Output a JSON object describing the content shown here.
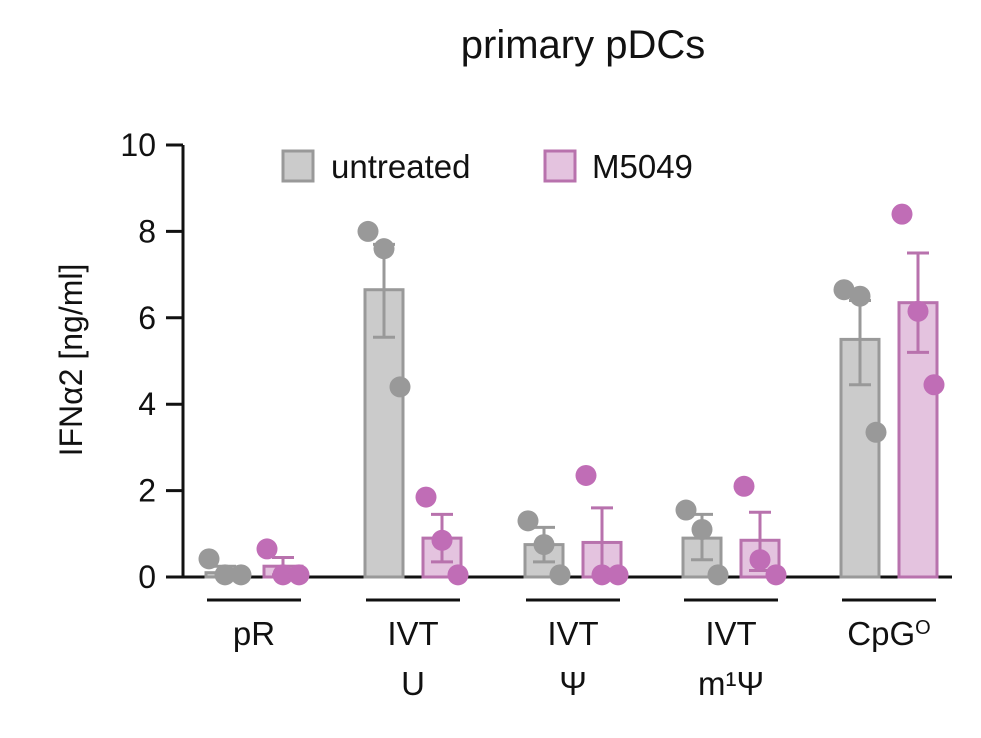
{
  "title": "primary pDCs",
  "colors": {
    "untreated_fill": "#cbcbcb",
    "untreated_edge": "#999999",
    "untreated_dot": "#999999",
    "m5049_fill": "#e4c3df",
    "m5049_edge": "#b872ad",
    "m5049_dot": "#c06db6"
  },
  "chart_data": {
    "type": "bar",
    "title": "primary pDCs",
    "ylabel": "IFNα2 [ng/ml]",
    "xlabel": "",
    "ylim": [
      0,
      10
    ],
    "yticks": [
      "0",
      "2",
      "4",
      "6",
      "8",
      "10"
    ],
    "legend_position": "top",
    "categories": [
      {
        "line1": "pR",
        "line2": ""
      },
      {
        "line1": "IVT",
        "line2": "U"
      },
      {
        "line1": "IVT",
        "line2": "Ψ"
      },
      {
        "line1": "IVT",
        "line2": "m¹Ψ"
      },
      {
        "line1": "CpG",
        "line2": "",
        "superscript": "O"
      }
    ],
    "series": [
      {
        "name": "untreated",
        "values": [
          0.1,
          6.65,
          0.75,
          0.9,
          5.5
        ],
        "error_upper": [
          0.25,
          7.7,
          1.15,
          1.45,
          6.4
        ],
        "error_lower": [
          0.0,
          5.55,
          0.35,
          0.4,
          4.45
        ],
        "points": [
          [
            0.42,
            0.05,
            0.05
          ],
          [
            8.0,
            7.6,
            4.4
          ],
          [
            1.3,
            0.75,
            0.05
          ],
          [
            1.55,
            1.1,
            0.05
          ],
          [
            6.65,
            6.5,
            3.35
          ]
        ]
      },
      {
        "name": "M5049",
        "values": [
          0.25,
          0.9,
          0.8,
          0.85,
          6.35
        ],
        "error_upper": [
          0.45,
          1.45,
          1.6,
          1.5,
          7.5
        ],
        "error_lower": [
          0.05,
          0.35,
          0.0,
          0.15,
          5.2
        ],
        "points": [
          [
            0.65,
            0.05,
            0.05
          ],
          [
            1.85,
            0.85,
            0.05
          ],
          [
            2.35,
            0.05,
            0.05
          ],
          [
            2.1,
            0.4,
            0.05
          ],
          [
            8.4,
            6.15,
            4.45
          ]
        ]
      }
    ]
  }
}
